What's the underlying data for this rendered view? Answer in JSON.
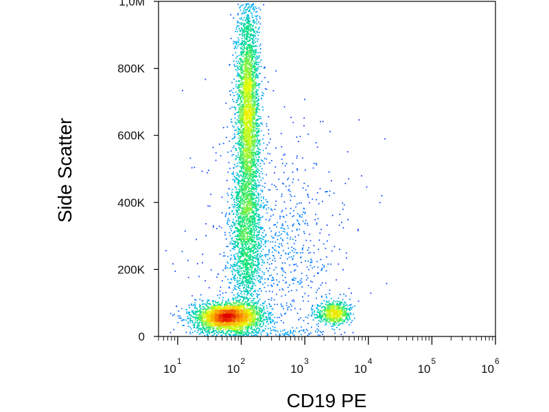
{
  "chart_data": {
    "type": "scatter",
    "title": "",
    "xlabel": "CD19 PE",
    "ylabel": "Side Scatter",
    "x_scale": "log",
    "xlim": [
      5,
      1000000
    ],
    "ylim": [
      0,
      1000000
    ],
    "grid": false,
    "density_coloring": true,
    "color_scale": [
      "#1a1aff",
      "#00b0ff",
      "#00e080",
      "#e8ff00",
      "#ffa000",
      "#e00000"
    ],
    "x_ticks": [
      {
        "value": 10,
        "base": "10",
        "exp": "1"
      },
      {
        "value": 100,
        "base": "10",
        "exp": "2"
      },
      {
        "value": 1000,
        "base": "10",
        "exp": "3"
      },
      {
        "value": 10000,
        "base": "10",
        "exp": "4"
      },
      {
        "value": 100000,
        "base": "10",
        "exp": "5"
      },
      {
        "value": 1000000,
        "base": "10",
        "exp": "6"
      }
    ],
    "y_ticks": [
      {
        "value": 0,
        "label": "0"
      },
      {
        "value": 200000,
        "label": "200K"
      },
      {
        "value": 400000,
        "label": "400K"
      },
      {
        "value": 600000,
        "label": "600K"
      },
      {
        "value": 800000,
        "label": "800K"
      },
      {
        "value": 1000000,
        "label": "1,0M"
      }
    ],
    "populations": [
      {
        "x_center": 60,
        "x_spread_decades": 0.28,
        "y_center": 60000,
        "y_spread": 22000,
        "share": 0.3
      },
      {
        "x_center": 125,
        "x_spread_decades": 0.09,
        "y_center": 680000,
        "y_spread": 170000,
        "share": 0.35
      },
      {
        "x_center": 120,
        "x_spread_decades": 0.13,
        "y_center": 300000,
        "y_spread": 120000,
        "share": 0.17
      },
      {
        "x_center": 2800,
        "x_spread_decades": 0.14,
        "y_center": 72000,
        "y_spread": 18000,
        "share": 0.07
      },
      {
        "x_center": 300,
        "x_spread_decades": 0.55,
        "y_center": 250000,
        "y_spread": 200000,
        "share": 0.11
      }
    ]
  }
}
